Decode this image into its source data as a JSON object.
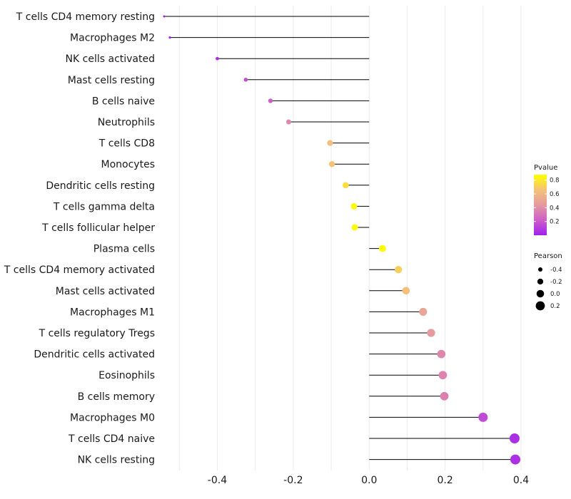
{
  "chart_data": {
    "type": "lollipop",
    "xlim": [
      -0.54,
      0.4
    ],
    "x_ticks": [
      -0.4,
      -0.2,
      0.0,
      0.2,
      0.4
    ],
    "x_tick_labels": [
      "-0.4",
      "-0.2",
      "0.0",
      "0.2",
      "0.4"
    ],
    "grid": true,
    "rows": [
      {
        "label": "T cells CD4 memory resting",
        "pearson": -0.54,
        "pvalue": 0.0
      },
      {
        "label": "Macrophages M2",
        "pearson": -0.525,
        "pvalue": 0.0
      },
      {
        "label": "NK cells activated",
        "pearson": -0.4,
        "pvalue": 0.05
      },
      {
        "label": "Mast cells resting",
        "pearson": -0.325,
        "pvalue": 0.16
      },
      {
        "label": "B cells naive",
        "pearson": -0.26,
        "pvalue": 0.22
      },
      {
        "label": "Neutrophils",
        "pearson": -0.212,
        "pvalue": 0.37
      },
      {
        "label": "T cells CD8",
        "pearson": -0.103,
        "pvalue": 0.64
      },
      {
        "label": "Monocytes",
        "pearson": -0.098,
        "pvalue": 0.66
      },
      {
        "label": "Dendritic cells resting",
        "pearson": -0.062,
        "pvalue": 0.76
      },
      {
        "label": "T cells gamma delta",
        "pearson": -0.04,
        "pvalue": 0.85
      },
      {
        "label": "T cells follicular helper",
        "pearson": -0.038,
        "pvalue": 0.86
      },
      {
        "label": "Plasma cells",
        "pearson": 0.035,
        "pvalue": 0.87
      },
      {
        "label": "T cells CD4 memory activated",
        "pearson": 0.077,
        "pvalue": 0.71
      },
      {
        "label": "Mast cells activated",
        "pearson": 0.097,
        "pvalue": 0.65
      },
      {
        "label": "Macrophages M1",
        "pearson": 0.142,
        "pvalue": 0.5
      },
      {
        "label": "T cells regulatory  Tregs ",
        "pearson": 0.163,
        "pvalue": 0.44
      },
      {
        "label": "Dendritic cells activated",
        "pearson": 0.19,
        "pvalue": 0.37
      },
      {
        "label": "Eosinophils",
        "pearson": 0.194,
        "pvalue": 0.36
      },
      {
        "label": "B cells memory",
        "pearson": 0.198,
        "pvalue": 0.35
      },
      {
        "label": "Macrophages M0",
        "pearson": 0.3,
        "pvalue": 0.15
      },
      {
        "label": "T cells CD4 naive",
        "pearson": 0.383,
        "pvalue": 0.06
      },
      {
        "label": "NK cells resting",
        "pearson": 0.385,
        "pvalue": 0.06
      }
    ],
    "legend": {
      "pvalue": {
        "title": "Pvalue",
        "breaks": [
          0.2,
          0.4,
          0.6,
          0.8
        ],
        "break_labels": [
          "0.2",
          "0.4",
          "0.6",
          "0.8"
        ],
        "range": [
          0.0,
          0.88
        ],
        "colors": [
          "#a020f0",
          "#cd5ec8",
          "#e59aa0",
          "#f5c277",
          "#ffff00"
        ]
      },
      "pearson": {
        "title": "Pearson",
        "breaks": [
          -0.4,
          -0.2,
          0.0,
          0.2
        ],
        "break_labels": [
          "-0.4",
          "-0.2",
          "0.0",
          "0.2"
        ]
      }
    }
  }
}
